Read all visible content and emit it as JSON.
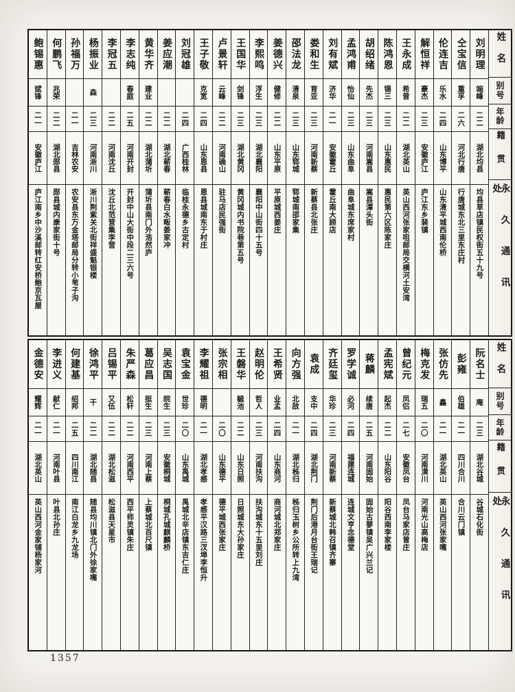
{
  "page": {
    "number": "1357"
  },
  "headers": {
    "name": "姓名",
    "alias": "别号",
    "age": "年龄",
    "native": "籍贯",
    "address": "永久通讯处"
  },
  "tables": [
    {
      "people": [
        {
          "name": "刘明理",
          "alias": "端峰",
          "age": "二二",
          "native": "湖北均县",
          "address": "均县草店镇民权街五十九号"
        },
        {
          "name": "仝宝信",
          "alias": "重孚",
          "age": "二六",
          "native": "河北行唐",
          "address": "行唐城东北三里东庄村"
        },
        {
          "name": "伦连吉",
          "alias": "乐水",
          "age": "二四",
          "native": "山东博平",
          "address": "山东清平城西南伦桥"
        },
        {
          "name": "解恒祥",
          "alias": "豪杰",
          "age": "二三",
          "native": "安徽庐江",
          "address": "庐江东乡裴镇"
        },
        {
          "name": "王永成",
          "alias": "希普",
          "age": "二二",
          "native": "湖北英山",
          "address": "英山西河张家咀邮局交横河土安湾"
        },
        {
          "name": "陈鸿恩",
          "alias": "锡三",
          "age": "二三",
          "native": "山东惠民",
          "address": "惠民第六区陈家庄"
        },
        {
          "name": "胡绍绪",
          "alias": "先杰",
          "age": "二三",
          "native": "河南嵩县",
          "address": "嵩县潭头街"
        },
        {
          "name": "孟鸿甫",
          "alias": "怡仙",
          "age": "二三",
          "native": "山东曲阜",
          "address": "曲阜城东席家村"
        },
        {
          "name": "刘有斌",
          "alias": "济华",
          "age": "二一",
          "native": "安徽霍丘",
          "address": "霍丘南大顾店"
        },
        {
          "name": "娄和生",
          "alias": "育亚",
          "age": "二三",
          "native": "河南新蔡",
          "address": "新蔡县北张庄"
        },
        {
          "name": "邵法龙",
          "alias": "清泉",
          "age": "二三",
          "native": "山东郓城",
          "address": "郓城南邵家集"
        },
        {
          "name": "姜德兴",
          "alias": "健修",
          "age": "二二",
          "native": "山东平原",
          "address": "平原城西姜庄"
        },
        {
          "name": "李熙鸣",
          "alias": "浮生",
          "age": "二三",
          "native": "湖北襄阳",
          "address": "襄阳中山街四十五号"
        },
        {
          "name": "王国华",
          "alias": "剑锋",
          "age": "二三",
          "native": "湖北黄冈",
          "address": "黄冈城内书院巷第五号"
        },
        {
          "name": "卢景轩",
          "alias": "云峰",
          "age": "二二",
          "native": "河南确山",
          "address": "驻马店民强街"
        },
        {
          "name": "王子敬",
          "alias": "克宽",
          "age": "二四",
          "native": "山东恩县",
          "address": "恩县城南东于村庄"
        },
        {
          "name": "刘冠雄",
          "alias": "",
          "age": "二四",
          "native": "广西桂林",
          "address": "临桂永德乡古定村"
        },
        {
          "name": "姜应潮",
          "alias": "",
          "age": "二二",
          "native": "湖北蕲春",
          "address": "蕲春白水畈姜家冲"
        },
        {
          "name": "黄华齐",
          "alias": "建业",
          "age": "二二",
          "native": "湖北蒲圻",
          "address": "蒲圻县南门外浩然庐"
        },
        {
          "name": "李志纯",
          "alias": "春庭",
          "age": "二五",
          "native": "河南开封",
          "address": "开封中山大街中段二三六号"
        },
        {
          "name": "李冠五",
          "alias": "",
          "age": "二二",
          "native": "河南沈丘",
          "address": "沈丘北范营集李营"
        },
        {
          "name": "杨振业",
          "alias": "森",
          "age": "二三",
          "native": "河南淅川",
          "address": "淅川荆紫关北街祥盛魁银楼"
        },
        {
          "name": "孙福万",
          "alias": "",
          "age": "二一",
          "native": "吉林农安",
          "address": "农安县东万金塔邮局分转小苇子沟"
        },
        {
          "name": "何鹏飞",
          "alias": "兆荣",
          "age": "二二",
          "native": "湖北郧县",
          "address": "郧县城内康家街十号"
        },
        {
          "name": "鲍锡惠",
          "alias": "斌锋",
          "age": "二一",
          "native": "安徽庐江",
          "address": "庐江南乡中沙溪邮转红安桥鲍京瓦屋"
        }
      ]
    },
    {
      "people": [
        {
          "name": "阮名士",
          "alias": "庵",
          "age": "二三",
          "native": "湖北谷城",
          "address": "谷城石化街"
        },
        {
          "name": "彭雍",
          "alias": "伯雄",
          "age": "二一",
          "native": "四川合川",
          "address": "合川云门镇"
        },
        {
          "name": "张仿先",
          "alias": "鑫",
          "age": "二一",
          "native": "湖北英山",
          "address": "英山西河张家嘴"
        },
        {
          "name": "梅克发",
          "alias": "瑞五",
          "age": "二〇",
          "native": "河南潢川",
          "address": "河南光山高梅店"
        },
        {
          "name": "曾纪元",
          "alias": "凤侣",
          "age": "二七",
          "native": "安徽凤台",
          "address": "凤台马家店曾庄"
        },
        {
          "name": "孟宪斌",
          "alias": "起杰",
          "age": "二二",
          "native": "山东阳谷",
          "address": "阳谷西南李家楼"
        },
        {
          "name": "蒋麟",
          "alias": "续唐",
          "age": "二五",
          "native": "河南固始",
          "address": "固始古蓼镇吴广兴兰记"
        },
        {
          "name": "罗学诚",
          "alias": "必河",
          "age": "二四",
          "native": "福建连城",
          "address": "连城文亨念德堂"
        },
        {
          "name": "齐廷玺",
          "alias": "华珍",
          "age": "二三",
          "native": "河南新蔡",
          "address": "新蔡城北韩召镇齐寨"
        },
        {
          "name": "袁成",
          "alias": "支中",
          "age": "二四",
          "native": "湖北荆门",
          "address": "荆门后港月台街王瑞记"
        },
        {
          "name": "向方强",
          "alias": "北敌",
          "age": "二一",
          "native": "湖北秭归",
          "address": "秭归玉树乡公所转上九湾"
        },
        {
          "name": "王希贤",
          "alias": "业孟",
          "age": "二四",
          "native": "山东商河",
          "address": "商河城北郑家庄"
        },
        {
          "name": "赵明伦",
          "alias": "哲人",
          "age": "二三",
          "native": "河南扶沟",
          "address": "扶沟城东十五里刘庄"
        },
        {
          "name": "王磐华",
          "alias": "毓池",
          "age": "二二",
          "native": "山东日照",
          "address": "日照城东大孙家庄"
        },
        {
          "name": "张宗相",
          "alias": "",
          "age": "二〇",
          "native": "山东德平",
          "address": "德平城西张家庄"
        },
        {
          "name": "李耀祖",
          "alias": "德明",
          "age": "二一",
          "native": "湖北孝感",
          "address": "孝感平汉路三汊埠李恒升"
        },
        {
          "name": "袁宝金",
          "alias": "世珍",
          "age": "二〇",
          "native": "山东禹城",
          "address": "禹城北辛店镇东吉仁庄"
        },
        {
          "name": "吴志国",
          "alias": "皖生",
          "age": "二三",
          "native": "安徽桐城",
          "address": "桐城孔城麒麟桥"
        },
        {
          "name": "葛应昌",
          "alias": "挺生",
          "age": "二三",
          "native": "河南上蔡",
          "address": "上蔡城北百尺镇"
        },
        {
          "name": "朱严森",
          "alias": "松轩",
          "age": "二二",
          "native": "河南西平",
          "address": "西平师灵镇朱庄"
        },
        {
          "name": "吕锡平",
          "alias": "又伍",
          "age": "二二",
          "native": "湖北松滋",
          "address": "松滋县天星市"
        },
        {
          "name": "徐鸿平",
          "alias": "干",
          "age": "二二",
          "native": "湖北随县",
          "address": "随县均川镇北门外徐家嘴"
        },
        {
          "name": "何建基",
          "alias": "绍邦",
          "age": "二五",
          "native": "四川南江",
          "address": "南江白龙乡九龙场"
        },
        {
          "name": "李进义",
          "alias": "献仁",
          "age": "二一",
          "native": "河南叶县",
          "address": "叶县北孙庄"
        },
        {
          "name": "金德安",
          "alias": "耀辉",
          "age": "二一",
          "native": "湖北英山",
          "address": "英山西河金家铺杨家河"
        }
      ]
    }
  ]
}
